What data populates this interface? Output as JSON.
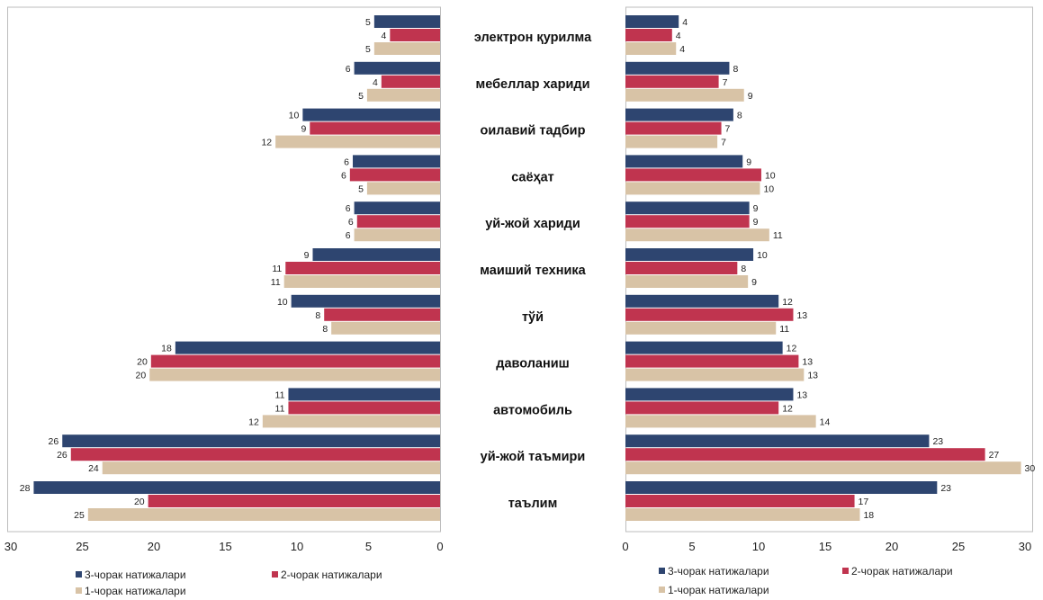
{
  "chart_data": {
    "type": "bar",
    "categories": [
      "электрон қурилма",
      "мебеллар хариди",
      "оилавий тадбир",
      "саёҳат",
      "уй-жой хариди",
      "маиший техника",
      "тўй",
      "даволаниш",
      "автомобиль",
      "уй-жой таъмири",
      "таълим"
    ],
    "colors": {
      "q3": "#2E4570",
      "q2": "#C0344F",
      "q1": "#D8C3A6"
    },
    "left_panel": {
      "orientation": "horizontal-reversed",
      "xlim": [
        0,
        30
      ],
      "ticks": [
        30,
        25,
        20,
        15,
        10,
        5,
        0
      ],
      "series": [
        {
          "name": "3-чорак натижалари",
          "color_key": "q3",
          "values": [
            5,
            6,
            10,
            6,
            6,
            9,
            10,
            18,
            11,
            26,
            28
          ]
        },
        {
          "name": "2-чорак натижалари",
          "color_key": "q2",
          "values": [
            4,
            4,
            9,
            6,
            6,
            11,
            8,
            20,
            11,
            26,
            20
          ]
        },
        {
          "name": "1-чорак натижалари",
          "color_key": "q1",
          "values": [
            5,
            5,
            12,
            5,
            6,
            11,
            8,
            20,
            12,
            24,
            25
          ]
        }
      ],
      "bar_values": {
        "q3": [
          4.6,
          6.0,
          9.6,
          6.1,
          6.0,
          8.9,
          10.4,
          18.5,
          10.6,
          26.4,
          28.4
        ],
        "q2": [
          3.5,
          4.1,
          9.1,
          6.3,
          5.8,
          10.8,
          8.1,
          20.2,
          10.6,
          25.8,
          20.4
        ],
        "q1": [
          4.6,
          5.1,
          11.5,
          5.1,
          6.0,
          10.9,
          7.6,
          20.3,
          12.4,
          23.6,
          24.6
        ]
      }
    },
    "right_panel": {
      "orientation": "horizontal",
      "xlim": [
        0,
        30
      ],
      "ticks": [
        0,
        5,
        10,
        15,
        20,
        25,
        30
      ],
      "series": [
        {
          "name": "3-чорак натижалари",
          "color_key": "q3",
          "values": [
            4,
            8,
            8,
            9,
            9,
            10,
            12,
            12,
            13,
            23,
            23
          ]
        },
        {
          "name": "2-чорак натижалари",
          "color_key": "q2",
          "values": [
            4,
            7,
            7,
            10,
            9,
            8,
            13,
            13,
            12,
            27,
            17
          ]
        },
        {
          "name": "1-чорак натижалари",
          "color_key": "q1",
          "values": [
            4,
            9,
            7,
            10,
            11,
            9,
            11,
            13,
            14,
            30,
            18
          ]
        }
      ],
      "bar_values": {
        "q3": [
          4.0,
          7.8,
          8.1,
          8.8,
          9.3,
          9.6,
          11.5,
          11.8,
          12.6,
          22.8,
          23.4
        ],
        "q2": [
          3.5,
          7.0,
          7.2,
          10.2,
          9.3,
          8.4,
          12.6,
          13.0,
          11.5,
          27.0,
          17.2
        ],
        "q1": [
          3.8,
          8.9,
          6.9,
          10.1,
          10.8,
          9.2,
          11.3,
          13.4,
          14.3,
          29.7,
          17.6
        ]
      }
    },
    "legend": [
      {
        "label": "3-чорак натижалари",
        "color_key": "q3"
      },
      {
        "label": "2-чорак натижалари",
        "color_key": "q2"
      },
      {
        "label": "1-чорак натижалари",
        "color_key": "q1"
      }
    ],
    "title": "",
    "xlabel": "",
    "ylabel": "",
    "grid": false,
    "legend_position": "bottom"
  }
}
